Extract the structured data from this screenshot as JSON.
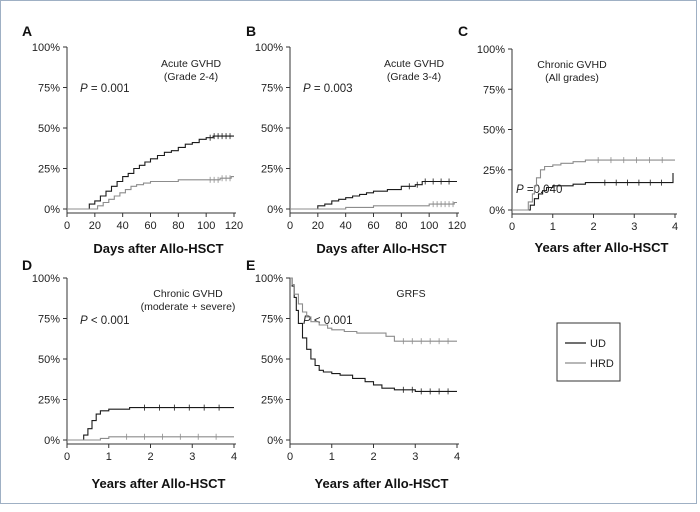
{
  "chart_data": [
    {
      "panel": "A",
      "type": "line",
      "title": "Acute GVHD",
      "subtitle": "(Grade 2-4)",
      "pvalue_prefix": "P",
      "pvalue_rest": " = 0.001",
      "xlabel": "Days after Allo-HSCT",
      "xlim": [
        0,
        120
      ],
      "ylim": [
        0,
        100
      ],
      "xticks": [
        "0",
        "20",
        "40",
        "60",
        "80",
        "100",
        "120"
      ],
      "yticks": [
        "0%",
        "25%",
        "50%",
        "75%",
        "100%"
      ],
      "series": [
        {
          "name": "UD",
          "color": "#1a1a1a",
          "x": [
            0,
            12,
            16,
            20,
            24,
            28,
            32,
            36,
            40,
            44,
            48,
            52,
            56,
            60,
            65,
            70,
            75,
            80,
            85,
            90,
            95,
            100,
            105,
            110,
            120
          ],
          "y": [
            0,
            0,
            3,
            5,
            8,
            11,
            14,
            17,
            20,
            22,
            25,
            27,
            29,
            31,
            33,
            35,
            36,
            38,
            40,
            41,
            43,
            44,
            45,
            45,
            45
          ]
        },
        {
          "name": "HRD",
          "color": "#8c8c8c",
          "x": [
            0,
            18,
            22,
            26,
            30,
            34,
            38,
            42,
            46,
            50,
            55,
            60,
            70,
            80,
            90,
            100,
            110,
            118,
            120
          ],
          "y": [
            0,
            0,
            2,
            4,
            6,
            8,
            10,
            12,
            14,
            15,
            16,
            17,
            17,
            18,
            18,
            18,
            19,
            20,
            20
          ]
        }
      ]
    },
    {
      "panel": "B",
      "type": "line",
      "title": "Acute GVHD",
      "subtitle": "(Grade 3-4)",
      "pvalue_prefix": "P",
      "pvalue_rest": " = 0.003",
      "xlabel": "Days after Allo-HSCT",
      "xlim": [
        0,
        120
      ],
      "ylim": [
        0,
        100
      ],
      "xticks": [
        "0",
        "20",
        "40",
        "60",
        "80",
        "100",
        "120"
      ],
      "yticks": [
        "0%",
        "25%",
        "50%",
        "75%",
        "100%"
      ],
      "series": [
        {
          "name": "UD",
          "color": "#1a1a1a",
          "x": [
            0,
            15,
            20,
            25,
            30,
            35,
            40,
            45,
            50,
            55,
            60,
            70,
            80,
            90,
            95,
            120
          ],
          "y": [
            0,
            0,
            2,
            3,
            5,
            6,
            7,
            8,
            9,
            10,
            11,
            12,
            14,
            15,
            17,
            17
          ]
        },
        {
          "name": "HRD",
          "color": "#8c8c8c",
          "x": [
            0,
            30,
            40,
            50,
            60,
            70,
            80,
            90,
            100,
            110,
            118,
            120
          ],
          "y": [
            0,
            0,
            1,
            1,
            2,
            2,
            2,
            2,
            3,
            3,
            4,
            4
          ]
        }
      ]
    },
    {
      "panel": "C",
      "type": "line",
      "title": "Chronic GVHD",
      "subtitle": "(All grades)",
      "pvalue_prefix": "P",
      "pvalue_rest": " =0.040",
      "xlabel": "Years after Allo-HSCT",
      "xlim": [
        0,
        4
      ],
      "ylim": [
        0,
        100
      ],
      "xticks": [
        "0",
        "1",
        "2",
        "3",
        "4"
      ],
      "yticks": [
        "0%",
        "25%",
        "50%",
        "75%",
        "100%"
      ],
      "series": [
        {
          "name": "UD",
          "color": "#1a1a1a",
          "x": [
            0,
            0.35,
            0.45,
            0.55,
            0.65,
            0.75,
            0.85,
            1.0,
            1.5,
            1.8,
            2.0,
            3.0,
            3.9,
            3.95
          ],
          "y": [
            0,
            0,
            3,
            7,
            10,
            12,
            14,
            15,
            16,
            17,
            17,
            17,
            17,
            23
          ]
        },
        {
          "name": "HRD",
          "color": "#8c8c8c",
          "x": [
            0,
            0.3,
            0.4,
            0.5,
            0.55,
            0.6,
            0.7,
            0.8,
            1.0,
            1.2,
            1.5,
            1.8,
            2.0,
            3.0,
            4.0
          ],
          "y": [
            0,
            0,
            5,
            10,
            15,
            20,
            25,
            27,
            28,
            29,
            30,
            31,
            31,
            31,
            31
          ]
        }
      ]
    },
    {
      "panel": "D",
      "type": "line",
      "title": "Chronic GVHD",
      "subtitle": "(moderate + severe)",
      "pvalue_prefix": "P",
      "pvalue_rest": " < 0.001",
      "xlabel": "Years after Allo-HSCT",
      "xlim": [
        0,
        4
      ],
      "ylim": [
        0,
        100
      ],
      "xticks": [
        "0",
        "1",
        "2",
        "3",
        "4"
      ],
      "yticks": [
        "0%",
        "25%",
        "50%",
        "75%",
        "100%"
      ],
      "series": [
        {
          "name": "UD",
          "color": "#1a1a1a",
          "x": [
            0,
            0.3,
            0.4,
            0.5,
            0.6,
            0.7,
            0.8,
            1.0,
            1.5,
            2.0,
            3.0,
            4.0
          ],
          "y": [
            0,
            0,
            3,
            7,
            12,
            16,
            18,
            19,
            20,
            20,
            20,
            20
          ]
        },
        {
          "name": "HRD",
          "color": "#8c8c8c",
          "x": [
            0,
            0.6,
            0.8,
            1.0,
            2.0,
            3.0,
            4.0
          ],
          "y": [
            0,
            0,
            1,
            2,
            2,
            2,
            2
          ]
        }
      ]
    },
    {
      "panel": "E",
      "type": "line",
      "title": "GRFS",
      "subtitle": "",
      "pvalue_prefix": "P",
      "pvalue_rest": " < 0.001",
      "xlabel": "Years after Allo-HSCT",
      "xlim": [
        0,
        4
      ],
      "ylim": [
        0,
        100
      ],
      "xticks": [
        "0",
        "1",
        "2",
        "3",
        "4"
      ],
      "yticks": [
        "0%",
        "25%",
        "50%",
        "75%",
        "100%"
      ],
      "series": [
        {
          "name": "UD",
          "color": "#1a1a1a",
          "x": [
            0,
            0.05,
            0.1,
            0.15,
            0.2,
            0.3,
            0.4,
            0.5,
            0.6,
            0.7,
            0.8,
            1.0,
            1.2,
            1.5,
            1.8,
            2.0,
            2.2,
            2.5,
            3.0,
            3.5,
            4.0
          ],
          "y": [
            100,
            95,
            88,
            80,
            72,
            63,
            56,
            50,
            46,
            43,
            42,
            41,
            40,
            38,
            36,
            34,
            32,
            31,
            30,
            30,
            30
          ]
        },
        {
          "name": "HRD",
          "color": "#8c8c8c",
          "x": [
            0,
            0.05,
            0.1,
            0.2,
            0.3,
            0.4,
            0.5,
            0.7,
            0.9,
            1.0,
            1.3,
            1.6,
            2.0,
            2.3,
            2.5,
            3.0,
            3.5,
            4.0
          ],
          "y": [
            100,
            96,
            90,
            84,
            79,
            76,
            73,
            71,
            69,
            68,
            67,
            66,
            66,
            64,
            61,
            61,
            61,
            61
          ]
        }
      ]
    }
  ],
  "legend": {
    "items": [
      {
        "name": "UD",
        "color": "#1a1a1a"
      },
      {
        "name": "HRD",
        "color": "#8c8c8c"
      }
    ]
  }
}
